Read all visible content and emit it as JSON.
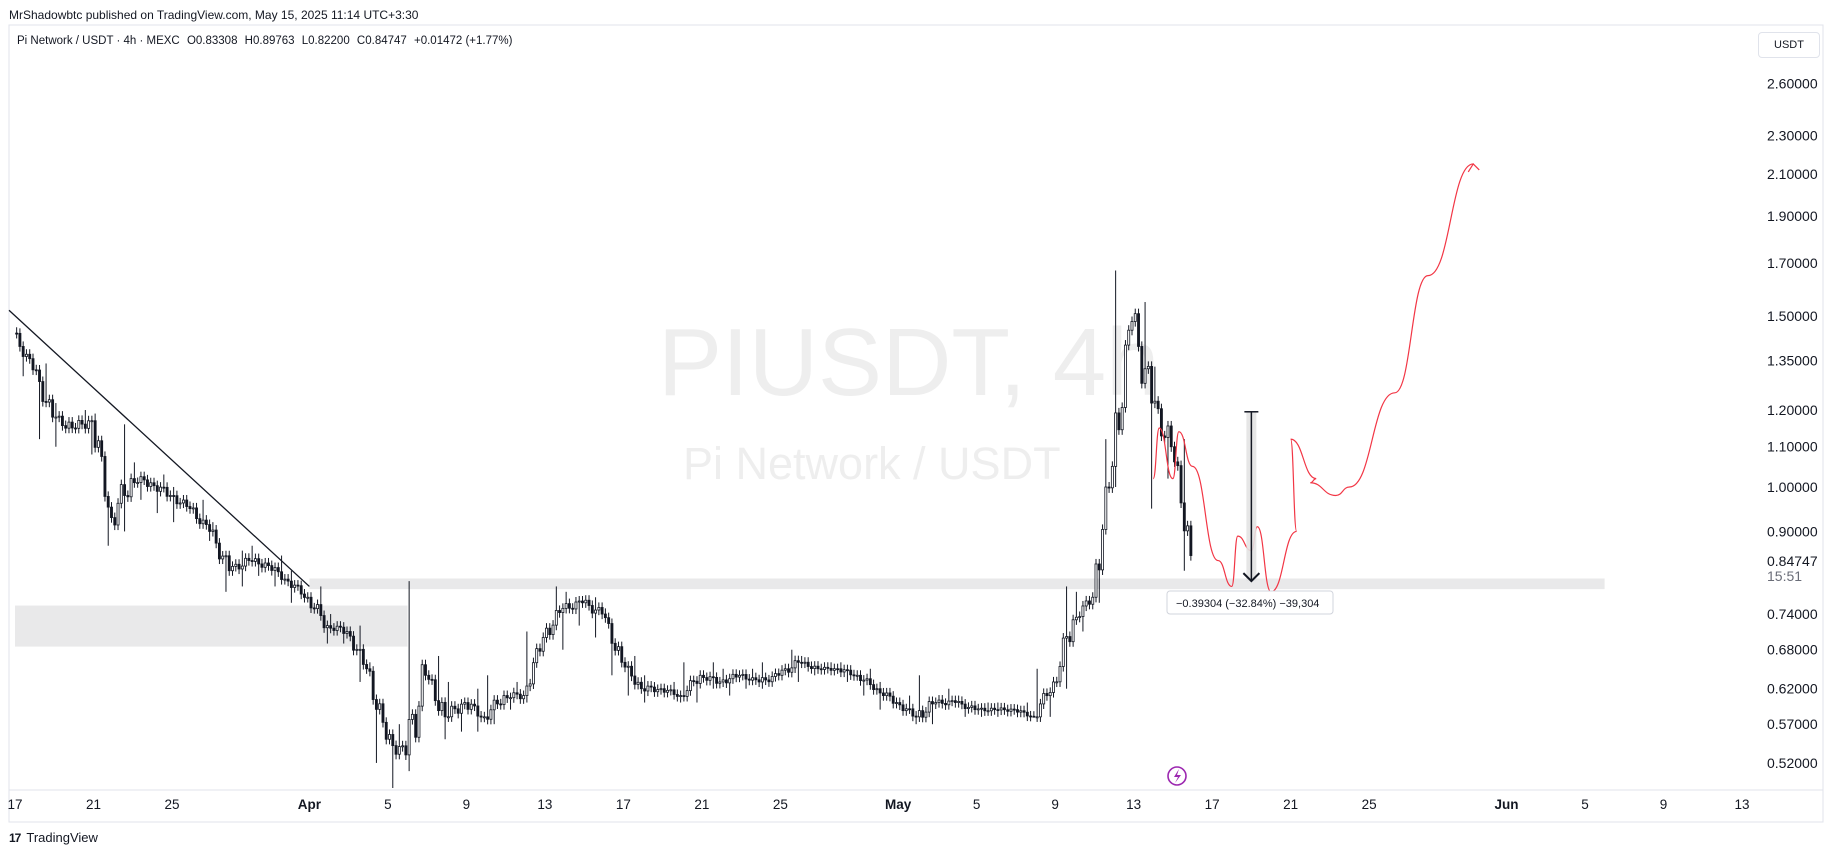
{
  "header": {
    "publisher": "MrShadowbtc published on TradingView.com, May 15, 2025 11:14 UTC+3:30"
  },
  "symbol_line": {
    "name": "Pi Network / USDT · 4h · MEXC",
    "open": "O0.83308",
    "high": "H0.89763",
    "low": "L0.82200",
    "close": "C0.84747",
    "change": "+0.01472 (+1.77%)"
  },
  "currency_button": "USDT",
  "watermark": {
    "ticker": "PIUSDT, 4h",
    "name": "Pi Network / USDT"
  },
  "last_price": {
    "value": "0.84747",
    "countdown": "15:51",
    "color": "#131722"
  },
  "measure_label": "−0.39304 (−32.84%) −39,304",
  "footer": {
    "brand": "TradingView"
  },
  "colors": {
    "projection": "#f23645",
    "up": "#131722",
    "down": "#131722",
    "zone": "#e9e9ea",
    "event_icon": "#9c27b0"
  },
  "chart_data": {
    "type": "candlestick",
    "title": "Pi Network / USDT · 4h · MEXC",
    "y_scale": "log",
    "y_range": [
      0.49,
      2.85
    ],
    "y_ticks": [
      "2.60000",
      "2.30000",
      "2.10000",
      "1.90000",
      "1.70000",
      "1.50000",
      "1.35000",
      "1.20000",
      "1.10000",
      "1.00000",
      "0.90000",
      "0.74000",
      "0.68000",
      "0.62000",
      "0.57000",
      "0.52000"
    ],
    "x_start": "2025-03-17",
    "x_end": "2025-06-13",
    "x_ticks": [
      {
        "label": "17",
        "date": "2025-03-17"
      },
      {
        "label": "21",
        "date": "2025-03-21"
      },
      {
        "label": "25",
        "date": "2025-03-25"
      },
      {
        "label": "Apr",
        "date": "2025-04-01"
      },
      {
        "label": "5",
        "date": "2025-04-05"
      },
      {
        "label": "9",
        "date": "2025-04-09"
      },
      {
        "label": "13",
        "date": "2025-04-13"
      },
      {
        "label": "17",
        "date": "2025-04-17"
      },
      {
        "label": "21",
        "date": "2025-04-21"
      },
      {
        "label": "25",
        "date": "2025-04-25"
      },
      {
        "label": "May",
        "date": "2025-05-01"
      },
      {
        "label": "5",
        "date": "2025-05-05"
      },
      {
        "label": "9",
        "date": "2025-05-09"
      },
      {
        "label": "13",
        "date": "2025-05-13"
      },
      {
        "label": "17",
        "date": "2025-05-17"
      },
      {
        "label": "21",
        "date": "2025-05-21"
      },
      {
        "label": "25",
        "date": "2025-05-25"
      },
      {
        "label": "Jun",
        "date": "2025-06-01"
      },
      {
        "label": "5",
        "date": "2025-06-05"
      },
      {
        "label": "9",
        "date": "2025-06-09"
      },
      {
        "label": "13",
        "date": "2025-06-13"
      }
    ],
    "daily_ohlc": [
      [
        "2025-03-17",
        1.44,
        1.46,
        1.3,
        1.32
      ],
      [
        "2025-03-18",
        1.32,
        1.34,
        1.12,
        1.18
      ],
      [
        "2025-03-19",
        1.18,
        1.22,
        1.1,
        1.15
      ],
      [
        "2025-03-20",
        1.15,
        1.2,
        1.08,
        1.17
      ],
      [
        "2025-03-21",
        1.17,
        1.19,
        0.87,
        0.93
      ],
      [
        "2025-03-22",
        0.93,
        1.16,
        0.9,
        1.02
      ],
      [
        "2025-03-23",
        1.02,
        1.06,
        0.97,
        1.01
      ],
      [
        "2025-03-24",
        1.01,
        1.03,
        0.94,
        0.98
      ],
      [
        "2025-03-25",
        0.98,
        1.0,
        0.92,
        0.95
      ],
      [
        "2025-03-26",
        0.95,
        0.97,
        0.88,
        0.9
      ],
      [
        "2025-03-27",
        0.9,
        0.92,
        0.78,
        0.82
      ],
      [
        "2025-03-28",
        0.82,
        0.86,
        0.79,
        0.84
      ],
      [
        "2025-03-29",
        0.84,
        0.87,
        0.81,
        0.83
      ],
      [
        "2025-03-30",
        0.83,
        0.85,
        0.79,
        0.8
      ],
      [
        "2025-03-31",
        0.8,
        0.82,
        0.76,
        0.77
      ],
      [
        "2025-04-01",
        0.77,
        0.79,
        0.69,
        0.72
      ],
      [
        "2025-04-02",
        0.72,
        0.74,
        0.69,
        0.71
      ],
      [
        "2025-04-03",
        0.71,
        0.72,
        0.63,
        0.65
      ],
      [
        "2025-04-04",
        0.65,
        0.66,
        0.52,
        0.55
      ],
      [
        "2025-04-05",
        0.55,
        0.57,
        0.49,
        0.53
      ],
      [
        "2025-04-06",
        0.53,
        0.8,
        0.51,
        0.64
      ],
      [
        "2025-04-07",
        0.64,
        0.67,
        0.55,
        0.58
      ],
      [
        "2025-04-08",
        0.58,
        0.63,
        0.56,
        0.6
      ],
      [
        "2025-04-09",
        0.6,
        0.62,
        0.56,
        0.58
      ],
      [
        "2025-04-10",
        0.58,
        0.64,
        0.57,
        0.61
      ],
      [
        "2025-04-11",
        0.61,
        0.63,
        0.59,
        0.61
      ],
      [
        "2025-04-12",
        0.61,
        0.71,
        0.6,
        0.7
      ],
      [
        "2025-04-13",
        0.7,
        0.79,
        0.68,
        0.75
      ],
      [
        "2025-04-14",
        0.75,
        0.78,
        0.72,
        0.76
      ],
      [
        "2025-04-15",
        0.76,
        0.77,
        0.7,
        0.74
      ],
      [
        "2025-04-16",
        0.74,
        0.75,
        0.64,
        0.66
      ],
      [
        "2025-04-17",
        0.66,
        0.67,
        0.61,
        0.62
      ],
      [
        "2025-04-18",
        0.62,
        0.64,
        0.6,
        0.62
      ],
      [
        "2025-04-19",
        0.62,
        0.63,
        0.6,
        0.61
      ],
      [
        "2025-04-20",
        0.61,
        0.66,
        0.6,
        0.64
      ],
      [
        "2025-04-21",
        0.64,
        0.66,
        0.62,
        0.63
      ],
      [
        "2025-04-22",
        0.63,
        0.65,
        0.61,
        0.64
      ],
      [
        "2025-04-23",
        0.64,
        0.65,
        0.62,
        0.63
      ],
      [
        "2025-04-24",
        0.63,
        0.66,
        0.62,
        0.64
      ],
      [
        "2025-04-25",
        0.64,
        0.68,
        0.63,
        0.66
      ],
      [
        "2025-04-26",
        0.66,
        0.67,
        0.64,
        0.65
      ],
      [
        "2025-04-27",
        0.65,
        0.66,
        0.64,
        0.65
      ],
      [
        "2025-04-28",
        0.65,
        0.66,
        0.63,
        0.64
      ],
      [
        "2025-04-29",
        0.64,
        0.65,
        0.61,
        0.62
      ],
      [
        "2025-04-30",
        0.62,
        0.63,
        0.59,
        0.6
      ],
      [
        "2025-05-01",
        0.6,
        0.61,
        0.57,
        0.58
      ],
      [
        "2025-05-02",
        0.58,
        0.64,
        0.57,
        0.6
      ],
      [
        "2025-05-03",
        0.6,
        0.62,
        0.59,
        0.6
      ],
      [
        "2025-05-04",
        0.6,
        0.61,
        0.58,
        0.59
      ],
      [
        "2025-05-05",
        0.59,
        0.6,
        0.58,
        0.59
      ],
      [
        "2025-05-06",
        0.59,
        0.6,
        0.58,
        0.59
      ],
      [
        "2025-05-07",
        0.59,
        0.6,
        0.58,
        0.58
      ],
      [
        "2025-05-08",
        0.58,
        0.65,
        0.58,
        0.63
      ],
      [
        "2025-05-09",
        0.63,
        0.79,
        0.62,
        0.73
      ],
      [
        "2025-05-10",
        0.73,
        0.78,
        0.71,
        0.77
      ],
      [
        "2025-05-11",
        0.77,
        1.12,
        0.76,
        1.05
      ],
      [
        "2025-05-12",
        1.05,
        1.67,
        1.0,
        1.48
      ],
      [
        "2025-05-13",
        1.48,
        1.55,
        0.95,
        1.22
      ],
      [
        "2025-05-14",
        1.22,
        1.33,
        1.02,
        1.1
      ],
      [
        "2025-05-15",
        1.1,
        1.12,
        0.82,
        0.85
      ]
    ],
    "resistance_trendline": [
      {
        "date": "2025-03-17",
        "price": 1.52
      },
      {
        "date": "2025-04-01",
        "price": 0.79
      }
    ],
    "zones": [
      {
        "from": "2025-03-17",
        "to": "2025-04-06",
        "low": 0.685,
        "high": 0.755
      },
      {
        "from": "2025-04-01",
        "to": "2025-06-06",
        "low": 0.785,
        "high": 0.805
      }
    ],
    "projection_path": [
      [
        "2025-05-14",
        1.02
      ],
      [
        "2025-05-14",
        1.15
      ],
      [
        "2025-05-15",
        1.02
      ],
      [
        "2025-05-15",
        1.14
      ],
      [
        "2025-05-16",
        1.05
      ],
      [
        "2025-05-17",
        0.84
      ],
      [
        "2025-05-18",
        0.79
      ],
      [
        "2025-05-18",
        0.89
      ],
      [
        "2025-05-19",
        0.86
      ],
      [
        "2025-05-19",
        0.91
      ],
      [
        "2025-05-20",
        0.78
      ],
      [
        "2025-05-21",
        0.9
      ],
      [
        "2025-05-21",
        1.12
      ],
      [
        "2025-05-22",
        1.02
      ],
      [
        "2025-05-22",
        1.01
      ],
      [
        "2025-05-23",
        0.98
      ],
      [
        "2025-05-24",
        1.0
      ],
      [
        "2025-05-26",
        1.25
      ],
      [
        "2025-05-28",
        1.65
      ],
      [
        "2025-05-30",
        2.15
      ]
    ],
    "measure": {
      "date": "2025-05-19",
      "from": 1.195,
      "to": 0.8
    },
    "last_price": 0.84747
  }
}
